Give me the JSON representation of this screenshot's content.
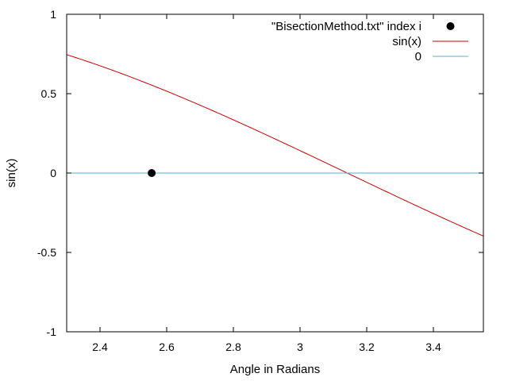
{
  "chart_data": {
    "type": "line",
    "xlabel": "Angle in Radians",
    "ylabel": "sin(x)",
    "xlim": [
      2.3,
      3.55
    ],
    "ylim": [
      -1,
      1
    ],
    "x_ticks": [
      2.4,
      2.6,
      2.8,
      3,
      3.2,
      3.4
    ],
    "x_tick_labels": [
      "2.4",
      "2.6",
      "2.8",
      "3",
      "3.2",
      "3.4"
    ],
    "y_ticks": [
      -1,
      -0.5,
      0,
      0.5,
      1
    ],
    "y_tick_labels": [
      "-1",
      "-0.5",
      "0",
      "0.5",
      "1"
    ],
    "grid": false,
    "legend_position": "top-right",
    "series": [
      {
        "name": "\"BisectionMethod.txt\" index i",
        "kind": "points",
        "color": "#000000",
        "points": [
          [
            2.555,
            0.0
          ]
        ]
      },
      {
        "name": "sin(x)",
        "kind": "function",
        "function": "sin",
        "color": "#cc0000"
      },
      {
        "name": "0",
        "kind": "constant",
        "value": 0,
        "color": "#55b0cc"
      }
    ]
  }
}
